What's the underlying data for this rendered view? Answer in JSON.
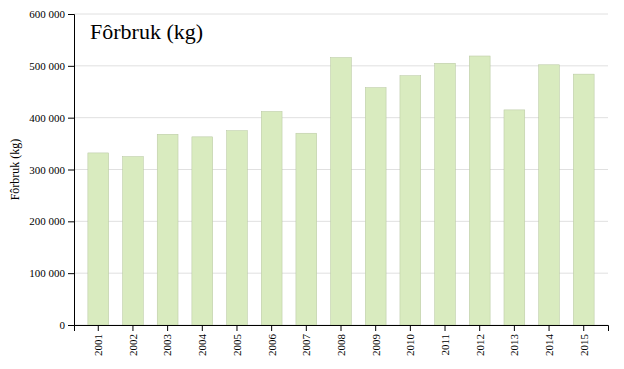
{
  "chart_data": {
    "type": "bar",
    "title": "Fôrbruk (kg)",
    "y_label": "Fôrbruk (kg)",
    "categories": [
      "2001",
      "2002",
      "2003",
      "2004",
      "2005",
      "2006",
      "2007",
      "2008",
      "2009",
      "2010",
      "2011",
      "2012",
      "2013",
      "2014",
      "2015"
    ],
    "values": [
      332000,
      325000,
      368000,
      363000,
      375000,
      412000,
      370000,
      516000,
      458000,
      481000,
      505000,
      519000,
      415000,
      502000,
      484000
    ],
    "color": "#d9ebbf",
    "ylim": [
      0,
      600000
    ],
    "yticks": [
      0,
      {
        "value": 100000,
        "label": "100 000"
      },
      {
        "value": 200000,
        "label": "200 000"
      },
      {
        "value": 300000,
        "label": "300 000"
      },
      {
        "value": 400000,
        "label": "400 000"
      },
      {
        "value": 500000,
        "label": "500 000"
      },
      {
        "value": 600000,
        "label": "600 000"
      }
    ],
    "grid": true
  }
}
